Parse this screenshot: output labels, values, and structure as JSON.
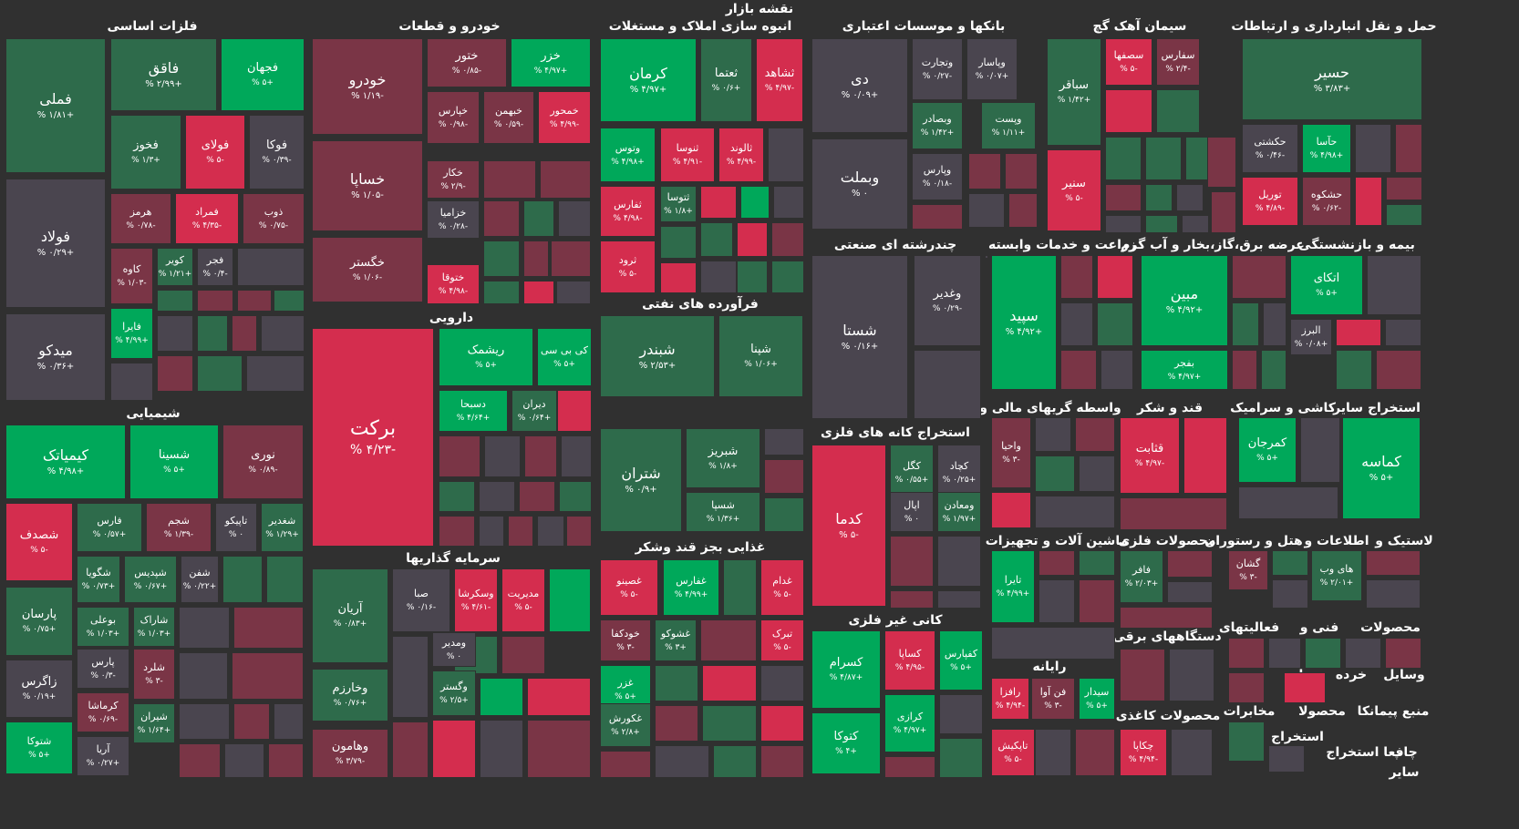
{
  "title": "نقشه بازار",
  "colors": {
    "up": "#00a85a",
    "upDim": "#2e6b4b",
    "neutral": "#4a454f",
    "downDim": "#7a3546",
    "down": "#d42d4e"
  },
  "sectors": [
    {
      "label": "فلزات اساسی"
    },
    {
      "label": "خودرو و قطعات"
    },
    {
      "label": "انبوه سازی املاک و مستغلات"
    },
    {
      "label": "بانکها و موسسات اعتباری"
    },
    {
      "label": "سیمان آهک گچ"
    },
    {
      "label": "حمل و نقل انبارداری و ارتباطات"
    },
    {
      "label": "شیمیایی"
    },
    {
      "label": "دارویی"
    },
    {
      "label": "فرآورده های نفتی"
    },
    {
      "label": "چندرشته ای صنعتی"
    },
    {
      "label": "زراعت و خدمات وابسته"
    },
    {
      "label": "عرضه برق،گاز،بخار و آب گرم"
    },
    {
      "label": "بیمه و بازنشستگی"
    },
    {
      "label": "سرمایه گذاریها"
    },
    {
      "label": "غذایی بجز قند وشکر"
    },
    {
      "label": "استخراج کانه های فلزی"
    },
    {
      "label": "واسطه گریهای مالی و"
    },
    {
      "label": "قند و شکر"
    },
    {
      "label": "کاشی و سرامیک"
    },
    {
      "label": "استخراج سایر"
    },
    {
      "label": "ماشین آلات و تجهیزات"
    },
    {
      "label": "محصولات فلزی"
    },
    {
      "label": "هتل و رستوران"
    },
    {
      "label": "اطلاعات و"
    },
    {
      "label": "لاستیک و"
    },
    {
      "label": "کانی غیر فلزی"
    },
    {
      "label": "دستگاههای برقی"
    },
    {
      "label": "رایانه"
    },
    {
      "label": "فعالیتهای"
    },
    {
      "label": "فنی و"
    },
    {
      "label": "محصولات"
    },
    {
      "label": "محصولات کاغذی"
    },
    {
      "label": "خرده"
    },
    {
      "label": "سایر"
    },
    {
      "label": "وسایل"
    },
    {
      "label": "مخابرات"
    },
    {
      "label": "محصولا"
    },
    {
      "label": "منبع پیمانکا"
    },
    {
      "label": "استخراج"
    },
    {
      "label": "فعا استخراج"
    },
    {
      "label": "چاپ"
    },
    {
      "label": "سایر"
    }
  ],
  "chart_data": {
    "type": "heatmap",
    "title": "نقشه بازار",
    "tiles": [
      {
        "sector": "فلزات اساسی",
        "name": "فملی",
        "pct": "+۱/۸۱ %",
        "change": 1.81
      },
      {
        "sector": "فلزات اساسی",
        "name": "فولاد",
        "pct": "+۰/۲۹ %",
        "change": 0.29
      },
      {
        "sector": "فلزات اساسی",
        "name": "میدکو",
        "pct": "+۰/۳۶ %",
        "change": 0.36
      },
      {
        "sector": "فلزات اساسی",
        "name": "فاقق",
        "pct": "+۲/۹۹ %",
        "change": 2.99
      },
      {
        "sector": "فلزات اساسی",
        "name": "فجهان",
        "pct": "+۵ %",
        "change": 5
      },
      {
        "sector": "فلزات اساسی",
        "name": "فخوز",
        "pct": "+۱/۳ %",
        "change": 1.3
      },
      {
        "sector": "فلزات اساسی",
        "name": "فولای",
        "pct": "-۵ %",
        "change": -5
      },
      {
        "sector": "فلزات اساسی",
        "name": "فوکا",
        "pct": "-۰/۳۹ %",
        "change": -0.39
      },
      {
        "sector": "فلزات اساسی",
        "name": "هرمز",
        "pct": "-۰/۷۸ %",
        "change": -0.78
      },
      {
        "sector": "فلزات اساسی",
        "name": "فمراد",
        "pct": "-۴/۳۵ %",
        "change": -4.35
      },
      {
        "sector": "فلزات اساسی",
        "name": "ذوب",
        "pct": "-۰/۷۵ %",
        "change": -0.75
      },
      {
        "sector": "فلزات اساسی",
        "name": "کاوه",
        "pct": "-۱/۰۳ %",
        "change": -1.03
      },
      {
        "sector": "فلزات اساسی",
        "name": "کویر",
        "pct": "+۱/۲۱ %",
        "change": 1.21
      },
      {
        "sector": "فلزات اساسی",
        "name": "فجر",
        "pct": "-۰/۴ %",
        "change": -0.4
      },
      {
        "sector": "فلزات اساسی",
        "name": "فایرا",
        "pct": "+۴/۹۹ %",
        "change": 4.99
      },
      {
        "sector": "خودرو و قطعات",
        "name": "خودرو",
        "pct": "-۱/۱۹ %",
        "change": -1.19
      },
      {
        "sector": "خودرو و قطعات",
        "name": "خساپا",
        "pct": "-۱/۰۵ %",
        "change": -1.05
      },
      {
        "sector": "خودرو و قطعات",
        "name": "خگستر",
        "pct": "-۱/۰۶ %",
        "change": -1.06
      },
      {
        "sector": "خودرو و قطعات",
        "name": "ختور",
        "pct": "-۰/۸۵ %",
        "change": -0.85
      },
      {
        "sector": "خودرو و قطعات",
        "name": "خزر",
        "pct": "+۴/۹۷ %",
        "change": 4.97
      },
      {
        "sector": "خودرو و قطعات",
        "name": "خپارس",
        "pct": "-۰/۹۸ %",
        "change": -0.98
      },
      {
        "sector": "خودرو و قطعات",
        "name": "خبهمن",
        "pct": "-۰/۵۹ %",
        "change": -0.59
      },
      {
        "sector": "خودرو و قطعات",
        "name": "خمحور",
        "pct": "-۴/۹۹ %",
        "change": -4.99
      },
      {
        "sector": "خودرو و قطعات",
        "name": "خکار",
        "pct": "-۲/۹ %",
        "change": -2.9
      },
      {
        "sector": "خودرو و قطعات",
        "name": "خزامیا",
        "pct": "-۰/۲۸ %",
        "change": -0.28
      },
      {
        "sector": "خودرو و قطعات",
        "name": "ختوقا",
        "pct": "-۴/۹۸ %",
        "change": -4.98
      },
      {
        "sector": "انبوه سازی املاک و مستغلات",
        "name": "کرمان",
        "pct": "+۴/۹۷ %",
        "change": 4.97
      },
      {
        "sector": "انبوه سازی املاک و مستغلات",
        "name": "ثعتما",
        "pct": "+۰/۶ %",
        "change": 0.6
      },
      {
        "sector": "انبوه سازی املاک و مستغلات",
        "name": "ثشاهد",
        "pct": "-۴/۹۷ %",
        "change": -4.97
      },
      {
        "sector": "انبوه سازی املاک و مستغلات",
        "name": "وتوس",
        "pct": "+۴/۹۸ %",
        "change": 4.98
      },
      {
        "sector": "انبوه سازی املاک و مستغلات",
        "name": "ثنوسا",
        "pct": "-۴/۹۱ %",
        "change": -4.91
      },
      {
        "sector": "انبوه سازی املاک و مستغلات",
        "name": "ثالوند",
        "pct": "-۴/۹۹ %",
        "change": -4.99
      },
      {
        "sector": "انبوه سازی املاک و مستغلات",
        "name": "ثفارس",
        "pct": "-۴/۹۸ %",
        "change": -4.98
      },
      {
        "sector": "انبوه سازی املاک و مستغلات",
        "name": "ثتوسا",
        "pct": "+۱/۸ %",
        "change": 1.8
      },
      {
        "sector": "انبوه سازی املاک و مستغلات",
        "name": "ثرود",
        "pct": "-۵ %",
        "change": -5
      },
      {
        "sector": "بانکها و موسسات اعتباری",
        "name": "دی",
        "pct": "+۰/۰۹ %",
        "change": 0.09
      },
      {
        "sector": "بانکها و موسسات اعتباری",
        "name": "وبملت",
        "pct": "۰ %",
        "change": 0
      },
      {
        "sector": "بانکها و موسسات اعتباری",
        "name": "وتجارت",
        "pct": "-۰/۲۷ %",
        "change": -0.27
      },
      {
        "sector": "بانکها و موسسات اعتباری",
        "name": "وپاسار",
        "pct": "+۰/۰۷ %",
        "change": 0.07
      },
      {
        "sector": "بانکها و موسسات اعتباری",
        "name": "وبصادر",
        "pct": "+۱/۴۲ %",
        "change": 1.42
      },
      {
        "sector": "بانکها و موسسات اعتباری",
        "name": "وپست",
        "pct": "+۱/۱۱ %",
        "change": 1.11
      },
      {
        "sector": "بانکها و موسسات اعتباری",
        "name": "وپارس",
        "pct": "-۰/۱۸ %",
        "change": -0.18
      },
      {
        "sector": "سیمان آهک گچ",
        "name": "سباقر",
        "pct": "+۱/۴۲ %",
        "change": 1.42
      },
      {
        "sector": "سیمان آهک گچ",
        "name": "سصفها",
        "pct": "-۵ %",
        "change": -5
      },
      {
        "sector": "سیمان آهک گچ",
        "name": "سفارس",
        "pct": "-۲/۴ %",
        "change": -2.4
      },
      {
        "sector": "سیمان آهک گچ",
        "name": "سنیر",
        "pct": "-۵ %",
        "change": -5
      },
      {
        "sector": "حمل و نقل انبارداری و ارتباطات",
        "name": "حسیر",
        "pct": "+۳/۸۳ %",
        "change": 3.83
      },
      {
        "sector": "حمل و نقل انبارداری و ارتباطات",
        "name": "حکشتی",
        "pct": "-۰/۴۶ %",
        "change": -0.46
      },
      {
        "sector": "حمل و نقل انبارداری و ارتباطات",
        "name": "حآسا",
        "pct": "+۴/۹۸ %",
        "change": 4.98
      },
      {
        "sector": "حمل و نقل انبارداری و ارتباطات",
        "name": "توریل",
        "pct": "-۴/۸۹ %",
        "change": -4.89
      },
      {
        "sector": "حمل و نقل انبارداری و ارتباطات",
        "name": "حشکوه",
        "pct": "-۰/۶۲ %",
        "change": -0.62
      },
      {
        "sector": "شیمیایی",
        "name": "کیمیاتک",
        "pct": "+۴/۹۸ %",
        "change": 4.98
      },
      {
        "sector": "شیمیایی",
        "name": "شسینا",
        "pct": "+۵ %",
        "change": 5
      },
      {
        "sector": "شیمیایی",
        "name": "نوری",
        "pct": "-۰/۸۹ %",
        "change": -0.89
      },
      {
        "sector": "شیمیایی",
        "name": "شصدف",
        "pct": "-۵ %",
        "change": -5
      },
      {
        "sector": "شیمیایی",
        "name": "فارس",
        "pct": "+۰/۵۷ %",
        "change": 0.57
      },
      {
        "sector": "شیمیایی",
        "name": "شجم",
        "pct": "-۱/۳۹ %",
        "change": -1.39
      },
      {
        "sector": "شیمیایی",
        "name": "تاپیکو",
        "pct": "۰ %",
        "change": 0
      },
      {
        "sector": "شیمیایی",
        "name": "شغدیر",
        "pct": "+۱/۲۹ %",
        "change": 1.29
      },
      {
        "sector": "شیمیایی",
        "name": "شگویا",
        "pct": "+۰/۷۳ %",
        "change": 0.73
      },
      {
        "sector": "شیمیایی",
        "name": "شپدیس",
        "pct": "+۰/۶۷ %",
        "change": 0.67
      },
      {
        "sector": "شیمیایی",
        "name": "شفن",
        "pct": "+۰/۲۲ %",
        "change": 0.22
      },
      {
        "sector": "شیمیایی",
        "name": "پارسان",
        "pct": "+۰/۷۵ %",
        "change": 0.75
      },
      {
        "sector": "شیمیایی",
        "name": "بوعلی",
        "pct": "+۱/۰۳ %",
        "change": 1.03
      },
      {
        "sector": "شیمیایی",
        "name": "شاراک",
        "pct": "+۱/۰۳ %",
        "change": 1.03
      },
      {
        "sector": "شیمیایی",
        "name": "زاگرس",
        "pct": "+۰/۱۹ %",
        "change": 0.19
      },
      {
        "sector": "شیمیایی",
        "name": "پارس",
        "pct": "-۰/۳ %",
        "change": -0.3
      },
      {
        "sector": "شیمیایی",
        "name": "شلرد",
        "pct": "-۳ %",
        "change": -3
      },
      {
        "sector": "شیمیایی",
        "name": "کرماشا",
        "pct": "-۰/۶۹ %",
        "change": -0.69
      },
      {
        "sector": "شیمیایی",
        "name": "شیران",
        "pct": "+۱/۶۴ %",
        "change": 1.64
      },
      {
        "sector": "شیمیایی",
        "name": "شتوکا",
        "pct": "+۵ %",
        "change": 5
      },
      {
        "sector": "شیمیایی",
        "name": "آریا",
        "pct": "+۰/۲۷ %",
        "change": 0.27
      },
      {
        "sector": "دارویی",
        "name": "برکت",
        "pct": "-۴/۲۳ %",
        "change": -4.23
      },
      {
        "sector": "دارویی",
        "name": "ریشمک",
        "pct": "+۵ %",
        "change": 5
      },
      {
        "sector": "دارویی",
        "name": "کی بی سی",
        "pct": "+۵ %",
        "change": 5
      },
      {
        "sector": "دارویی",
        "name": "دسبحا",
        "pct": "+۴/۶۴ %",
        "change": 4.64
      },
      {
        "sector": "دارویی",
        "name": "دیران",
        "pct": "+۰/۶۴ %",
        "change": 0.64
      },
      {
        "sector": "فرآورده های نفتی",
        "name": "شبندر",
        "pct": "+۲/۵۳ %",
        "change": 2.53
      },
      {
        "sector": "فرآورده های نفتی",
        "name": "شپنا",
        "pct": "+۱/۰۶ %",
        "change": 1.06
      },
      {
        "sector": "فرآورده های نفتی",
        "name": "شتران",
        "pct": "+۰/۹ %",
        "change": 0.9
      },
      {
        "sector": "فرآورده های نفتی",
        "name": "شبریز",
        "pct": "+۱/۸ %",
        "change": 1.8
      },
      {
        "sector": "فرآورده های نفتی",
        "name": "شسپا",
        "pct": "+۱/۳۶ %",
        "change": 1.36
      },
      {
        "sector": "چندرشته ای صنعتی",
        "name": "شستا",
        "pct": "+۰/۱۶ %",
        "change": 0.16
      },
      {
        "sector": "چندرشته ای صنعتی",
        "name": "وغدیر",
        "pct": "-۰/۲۹ %",
        "change": -0.29
      },
      {
        "sector": "زراعت و خدمات وابسته",
        "name": "سپید",
        "pct": "+۴/۹۲ %",
        "change": 4.92
      },
      {
        "sector": "عرضه برق،گاز،بخار و آب گرم",
        "name": "مبین",
        "pct": "+۴/۹۲ %",
        "change": 4.92
      },
      {
        "sector": "عرضه برق،گاز،بخار و آب گرم",
        "name": "بفجر",
        "pct": "+۴/۹۷ %",
        "change": 4.97
      },
      {
        "sector": "بیمه و بازنشستگی",
        "name": "اتکای",
        "pct": "+۵ %",
        "change": 5
      },
      {
        "sector": "بیمه و بازنشستگی",
        "name": "البرز",
        "pct": "+۰/۰۸ %",
        "change": 0.08
      },
      {
        "sector": "سرمایه گذاریها",
        "name": "آریان",
        "pct": "+۰/۸۳ %",
        "change": 0.83
      },
      {
        "sector": "سرمایه گذاریها",
        "name": "صبا",
        "pct": "-۰/۱۶ %",
        "change": -0.16
      },
      {
        "sector": "سرمایه گذاریها",
        "name": "وسکرشا",
        "pct": "-۴/۶۱ %",
        "change": -4.61
      },
      {
        "sector": "سرمایه گذاریها",
        "name": "مدیریت",
        "pct": "-۵ %",
        "change": -5
      },
      {
        "sector": "سرمایه گذاریها",
        "name": "ومدیر",
        "pct": "۰ %",
        "change": 0
      },
      {
        "sector": "سرمایه گذاریها",
        "name": "وگستر",
        "pct": "+۲/۵ %",
        "change": 2.5
      },
      {
        "sector": "سرمایه گذاریها",
        "name": "وخارزم",
        "pct": "+۰/۷۶ %",
        "change": 0.76
      },
      {
        "sector": "سرمایه گذاریها",
        "name": "وهامون",
        "pct": "-۳/۷۹ %",
        "change": -3.79
      },
      {
        "sector": "غذایی بجز قند وشکر",
        "name": "غصینو",
        "pct": "-۵ %",
        "change": -5
      },
      {
        "sector": "غذایی بجز قند وشکر",
        "name": "غفارس",
        "pct": "+۴/۹۹ %",
        "change": 4.99
      },
      {
        "sector": "غذایی بجز قند وشکر",
        "name": "غدام",
        "pct": "-۵ %",
        "change": -5
      },
      {
        "sector": "غذایی بجز قند وشکر",
        "name": "خودکفا",
        "pct": "-۳ %",
        "change": -3
      },
      {
        "sector": "غذایی بجز قند وشکر",
        "name": "غشوکو",
        "pct": "+۳ %",
        "change": 3
      },
      {
        "sector": "غذایی بجز قند وشکر",
        "name": "تبرک",
        "pct": "-۵ %",
        "change": -5
      },
      {
        "sector": "غذایی بجز قند وشکر",
        "name": "غزر",
        "pct": "+۵ %",
        "change": 5
      },
      {
        "sector": "غذایی بجز قند وشکر",
        "name": "غکورش",
        "pct": "+۲/۸ %",
        "change": 2.8
      },
      {
        "sector": "استخراج کانه های فلزی",
        "name": "کدما",
        "pct": "-۵ %",
        "change": -5
      },
      {
        "sector": "استخراج کانه های فلزی",
        "name": "کگل",
        "pct": "+۰/۵۵ %",
        "change": 0.55
      },
      {
        "sector": "استخراج کانه های فلزی",
        "name": "کچاد",
        "pct": "+۰/۲۵ %",
        "change": 0.25
      },
      {
        "sector": "استخراج کانه های فلزی",
        "name": "اپال",
        "pct": "۰ %",
        "change": 0
      },
      {
        "sector": "استخراج کانه های فلزی",
        "name": "ومعادن",
        "pct": "+۱/۹۷ %",
        "change": 1.97
      },
      {
        "sector": "کانی غیر فلزی",
        "name": "کسرام",
        "pct": "+۴/۸۷ %",
        "change": 4.87
      },
      {
        "sector": "کانی غیر فلزی",
        "name": "کساپا",
        "pct": "-۴/۹۵ %",
        "change": -4.95
      },
      {
        "sector": "کانی غیر فلزی",
        "name": "کفپارس",
        "pct": "+۵ %",
        "change": 5
      },
      {
        "sector": "کانی غیر فلزی",
        "name": "کتوکا",
        "pct": "+۴ %",
        "change": 4
      },
      {
        "sector": "کانی غیر فلزی",
        "name": "کرازی",
        "pct": "+۴/۹۷ %",
        "change": 4.97
      },
      {
        "sector": "واسطه گریهای مالی و",
        "name": "واحیا",
        "pct": "-۳ %",
        "change": -3
      },
      {
        "sector": "قند و شکر",
        "name": "قثابت",
        "pct": "-۴/۹۷ %",
        "change": -4.97
      },
      {
        "sector": "کاشی و سرامیک",
        "name": "کمرجان",
        "pct": "+۵ %",
        "change": 5
      },
      {
        "sector": "استخراج سایر",
        "name": "کماسه",
        "pct": "+۵ %",
        "change": 5
      },
      {
        "sector": "ماشین آلات و تجهیزات",
        "name": "تایرا",
        "pct": "+۴/۹۹ %",
        "change": 4.99
      },
      {
        "sector": "محصولات فلزی",
        "name": "فافر",
        "pct": "+۲/۰۳ %",
        "change": 2.03
      },
      {
        "sector": "هتل و رستوران",
        "name": "گشان",
        "pct": "-۳ %",
        "change": -3
      },
      {
        "sector": "اطلاعات و",
        "name": "های وب",
        "pct": "+۲/۰۱ %",
        "change": 2.01
      },
      {
        "sector": "رایانه",
        "name": "رافزا",
        "pct": "-۴/۹۴ %",
        "change": -4.94
      },
      {
        "sector": "رایانه",
        "name": "فن آوا",
        "pct": "-۳ %",
        "change": -3
      },
      {
        "sector": "رایانه",
        "name": "سیدار",
        "pct": "+۵ %",
        "change": 5
      },
      {
        "sector": "رایانه",
        "name": "تاپکیش",
        "pct": "-۵ %",
        "change": -5
      },
      {
        "sector": "محصولات کاغذی",
        "name": "چکاپا",
        "pct": "-۴/۹۴ %",
        "change": -4.94
      }
    ]
  }
}
